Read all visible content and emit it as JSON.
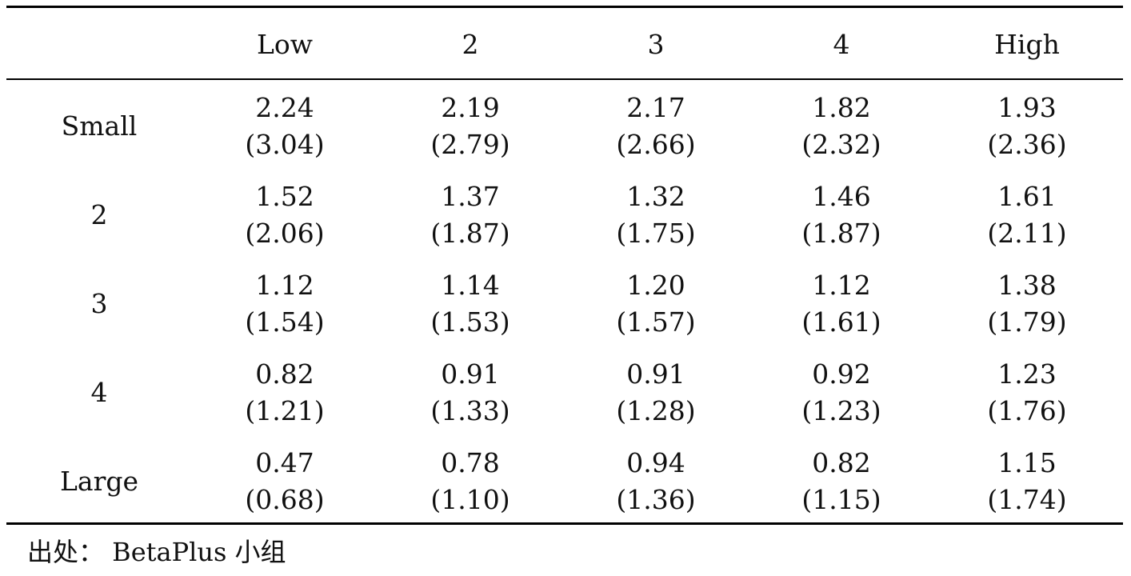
{
  "table": {
    "columns": [
      "Low",
      "2",
      "3",
      "4",
      "High"
    ],
    "rows": [
      {
        "label": "Small",
        "cells": [
          {
            "value": "2.24",
            "tstat": "(3.04)"
          },
          {
            "value": "2.19",
            "tstat": "(2.79)"
          },
          {
            "value": "2.17",
            "tstat": "(2.66)"
          },
          {
            "value": "1.82",
            "tstat": "(2.32)"
          },
          {
            "value": "1.93",
            "tstat": "(2.36)"
          }
        ]
      },
      {
        "label": "2",
        "cells": [
          {
            "value": "1.52",
            "tstat": "(2.06)"
          },
          {
            "value": "1.37",
            "tstat": "(1.87)"
          },
          {
            "value": "1.32",
            "tstat": "(1.75)"
          },
          {
            "value": "1.46",
            "tstat": "(1.87)"
          },
          {
            "value": "1.61",
            "tstat": "(2.11)"
          }
        ]
      },
      {
        "label": "3",
        "cells": [
          {
            "value": "1.12",
            "tstat": "(1.54)"
          },
          {
            "value": "1.14",
            "tstat": "(1.53)"
          },
          {
            "value": "1.20",
            "tstat": "(1.57)"
          },
          {
            "value": "1.12",
            "tstat": "(1.61)"
          },
          {
            "value": "1.38",
            "tstat": "(1.79)"
          }
        ]
      },
      {
        "label": "4",
        "cells": [
          {
            "value": "0.82",
            "tstat": "(1.21)"
          },
          {
            "value": "0.91",
            "tstat": "(1.33)"
          },
          {
            "value": "0.91",
            "tstat": "(1.28)"
          },
          {
            "value": "0.92",
            "tstat": "(1.23)"
          },
          {
            "value": "1.23",
            "tstat": "(1.76)"
          }
        ]
      },
      {
        "label": "Large",
        "cells": [
          {
            "value": "0.47",
            "tstat": "(0.68)"
          },
          {
            "value": "0.78",
            "tstat": "(1.10)"
          },
          {
            "value": "0.94",
            "tstat": "(1.36)"
          },
          {
            "value": "0.82",
            "tstat": "(1.15)"
          },
          {
            "value": "1.15",
            "tstat": "(1.74)"
          }
        ]
      }
    ]
  },
  "source": "出处： BetaPlus 小组"
}
